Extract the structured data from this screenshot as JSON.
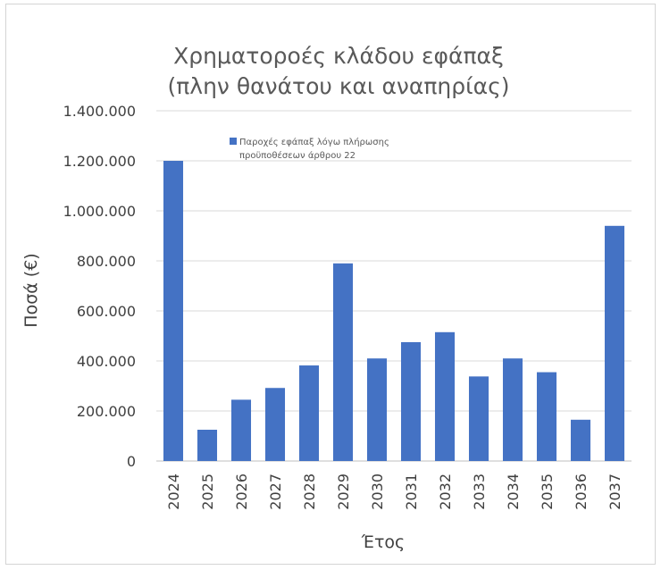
{
  "chart_data": {
    "type": "bar",
    "title": [
      "Χρηματοροές κλάδου εφάπαξ",
      "(πλην θανάτου και αναπηρίας)"
    ],
    "xlabel": "Έτος",
    "ylabel": "Ποσά (€)",
    "categories": [
      "2024",
      "2025",
      "2026",
      "2027",
      "2028",
      "2029",
      "2030",
      "2031",
      "2032",
      "2033",
      "2034",
      "2035",
      "2036",
      "2037"
    ],
    "series": [
      {
        "name": "Παροχές εφάπαξ λόγω πλήρωσης προϋποθέσεων άρθρου 22",
        "legend_lines": [
          "Παροχές εφάπαξ λόγω πλήρωσης",
          "προϋποθέσεων άρθρου 22"
        ],
        "color": "#4472C4",
        "values": [
          1200000,
          125000,
          245000,
          292000,
          382000,
          790000,
          410000,
          475000,
          515000,
          338000,
          410000,
          355000,
          165000,
          940000
        ]
      }
    ],
    "ylim": [
      0,
      1400000
    ],
    "yticks": [
      0,
      200000,
      400000,
      600000,
      800000,
      1000000,
      1200000,
      1400000
    ],
    "ytick_labels": [
      "0",
      "200.000",
      "400.000",
      "600.000",
      "800.000",
      "1.000.000",
      "1.200.000",
      "1.400.000"
    ],
    "grid": true,
    "legend_position": "top-left inside"
  }
}
